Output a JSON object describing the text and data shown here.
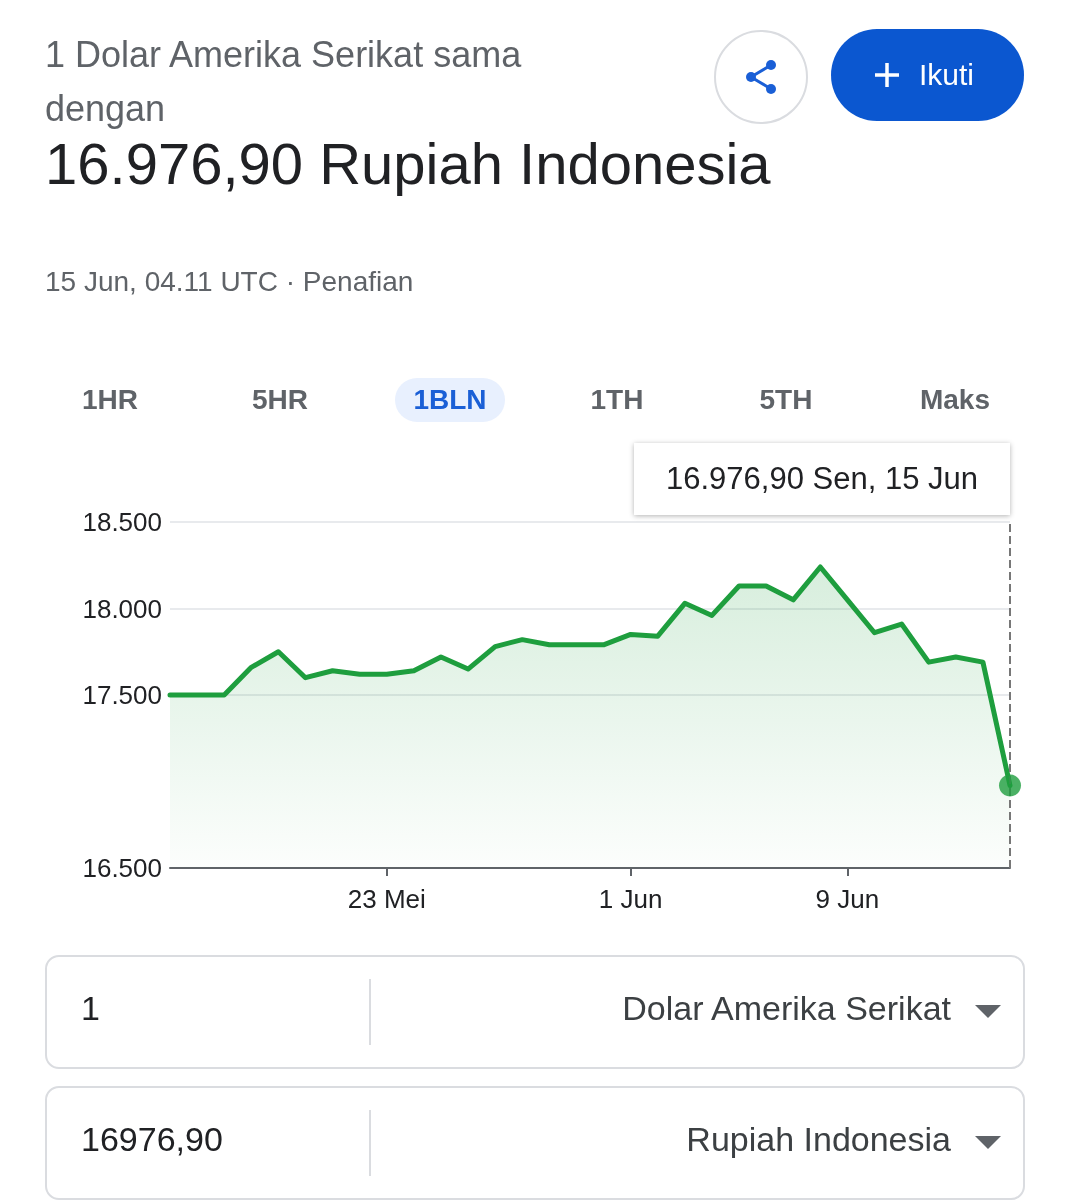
{
  "chart_data": {
    "type": "area",
    "title": "1 Dolar Amerika Serikat sama dengan",
    "subtitle": "16.976,90 Rupiah Indonesia",
    "annotations": [
      "15 Jun, 04.11 UTC · Penafian",
      "Ikuti",
      "1HR",
      "5HR",
      "1BLN",
      "1TH",
      "5TH",
      "Maks",
      "16.976,90 Sen, 15 Jun",
      "1",
      "Dolar Amerika Serikat",
      "16976,90",
      "Rupiah Indonesia"
    ],
    "x": [
      "--05-15",
      "--05-16",
      "--05-17",
      "--05-18",
      "--05-19",
      "--05-20",
      "--05-21",
      "--05-22",
      "--05-23",
      "--05-24",
      "--05-25",
      "--05-26",
      "--05-27",
      "--05-28",
      "--05-29",
      "--05-30",
      "--05-31",
      "--06-01",
      "--06-02",
      "--06-03",
      "--06-04",
      "--06-05",
      "--06-06",
      "--06-07",
      "--06-08",
      "--06-09",
      "--06-10",
      "--06-11",
      "--06-12",
      "--06-13",
      "--06-14",
      "--06-15"
    ],
    "series": [
      {
        "color": "#1e9e3e",
        "values": [
          17500,
          17500,
          17500,
          17660,
          17750,
          17600,
          17640,
          17620,
          17620,
          17640,
          17720,
          17650,
          17780,
          17820,
          17790,
          17790,
          17790,
          17850,
          17840,
          18030,
          17960,
          18130,
          18130,
          18050,
          18240,
          18050,
          17860,
          17910,
          17690,
          17720,
          17690,
          16976.9
        ]
      },
      {
        "type": "scatter",
        "color": "#1e9e3e",
        "x": [
          "--06-15"
        ],
        "values": [
          16976.9
        ]
      }
    ],
    "xlim": [
      "--05-15",
      "--06-15"
    ],
    "xticks": [
      {
        "value": "--05-23",
        "label": "23 Mei"
      },
      {
        "value": "--06-01",
        "label": "1 Jun"
      },
      {
        "value": "--06-09",
        "label": "9 Jun"
      }
    ],
    "ylim": [
      16500,
      18500
    ],
    "yticks": [
      {
        "value": 16500,
        "label": "16.500"
      },
      {
        "value": 17500,
        "label": "17.500"
      },
      {
        "value": 18000,
        "label": "18.000"
      },
      {
        "value": 18500,
        "label": "18.500"
      }
    ],
    "ref_lines": [
      {
        "axis": "x",
        "value": "--06-15",
        "line_style": "dashed",
        "color": "#777777"
      }
    ],
    "grid": "y",
    "line_style": "solid"
  }
}
